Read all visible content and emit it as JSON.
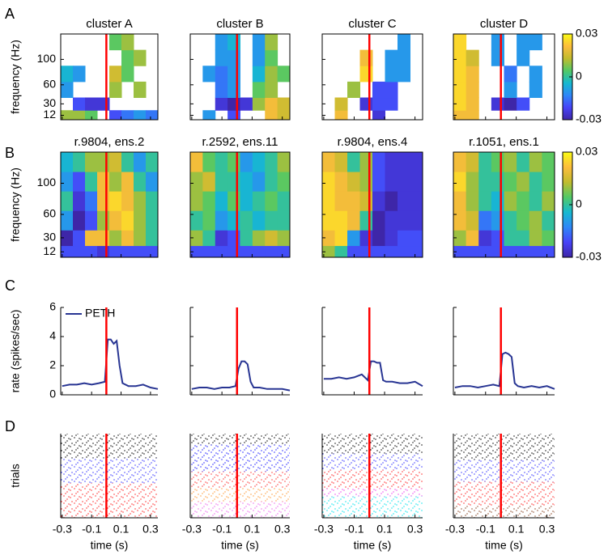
{
  "chart_data": [
    {
      "type": "heatmap",
      "panel_label": "A",
      "ylabel": "frequency (Hz)",
      "xlim": [
        -0.31,
        0.35
      ],
      "xticks": [
        -0.3,
        -0.1,
        0.1,
        0.3
      ],
      "ylim": [
        5,
        140
      ],
      "yticks": [
        12,
        30,
        60,
        100
      ],
      "zlim": [
        -0.03,
        0.03
      ],
      "colorbar_ticks": [
        0.03,
        0,
        -0.03
      ],
      "colormap": [
        "#3e26a8",
        "#4743f8",
        "#2e87f7",
        "#16b9d0",
        "#52c966",
        "#c1bc2e",
        "#fdbd3c",
        "#f9fb15"
      ],
      "marker_x": 0,
      "marker_color": "#ff0000",
      "time_bins": [
        -0.31,
        -0.2275,
        -0.145,
        -0.0625,
        0.02,
        0.1025,
        0.185,
        0.2675,
        0.35
      ],
      "freq_bins": [
        5,
        20,
        40,
        65,
        90,
        115,
        140
      ],
      "panels": [
        {
          "title": "cluster A",
          "z": [
            [
              0.01,
              0.01,
              0.005,
              null,
              -0.02,
              -0.015,
              -0.01,
              -0.015
            ],
            [
              null,
              -0.02,
              -0.025,
              -0.025,
              null,
              null,
              null,
              null
            ],
            [
              -0.01,
              null,
              null,
              null,
              0.01,
              null,
              0.01,
              null
            ],
            [
              -0.005,
              -0.01,
              null,
              null,
              0.015,
              0.005,
              null,
              null
            ],
            [
              null,
              null,
              null,
              null,
              null,
              0.005,
              0.01,
              null
            ],
            [
              null,
              null,
              null,
              null,
              0.005,
              0.01,
              null,
              null
            ]
          ]
        },
        {
          "title": "cluster B",
          "z": [
            [
              null,
              -0.01,
              null,
              -0.02,
              null,
              null,
              0.02,
              0.015
            ],
            [
              null,
              null,
              -0.025,
              -0.03,
              -0.025,
              0.01,
              0.02,
              0.015
            ],
            [
              null,
              null,
              -0.015,
              -0.01,
              null,
              0.005,
              0.01,
              null
            ],
            [
              null,
              -0.01,
              -0.015,
              -0.01,
              null,
              -0.005,
              0.01,
              0.005
            ],
            [
              null,
              null,
              -0.01,
              -0.01,
              null,
              -0.01,
              0.005,
              null
            ],
            [
              null,
              null,
              -0.01,
              -0.005,
              null,
              -0.01,
              0.01,
              null
            ]
          ]
        },
        {
          "title": "cluster C",
          "z": [
            [
              null,
              0.02,
              null,
              null,
              -0.025,
              null,
              null,
              null
            ],
            [
              null,
              0.015,
              null,
              -0.025,
              -0.02,
              -0.02,
              null,
              null
            ],
            [
              null,
              null,
              0.01,
              null,
              -0.02,
              -0.02,
              null,
              null
            ],
            [
              null,
              null,
              null,
              0.025,
              null,
              -0.01,
              -0.01,
              null
            ],
            [
              null,
              null,
              null,
              0.02,
              null,
              -0.01,
              -0.01,
              null
            ],
            [
              null,
              null,
              null,
              null,
              null,
              null,
              -0.01,
              null
            ]
          ]
        },
        {
          "title": "cluster D",
          "z": [
            [
              0.02,
              0.02,
              null,
              null,
              null,
              null,
              null,
              null
            ],
            [
              0.025,
              0.02,
              null,
              -0.025,
              -0.03,
              -0.02,
              null,
              null
            ],
            [
              0.025,
              0.02,
              null,
              null,
              -0.01,
              null,
              -0.01,
              null
            ],
            [
              0.025,
              0.02,
              null,
              null,
              -0.015,
              null,
              -0.01,
              null
            ],
            [
              0.025,
              0.015,
              null,
              -0.01,
              null,
              -0.01,
              null,
              null
            ],
            [
              0.025,
              null,
              null,
              -0.01,
              null,
              -0.01,
              -0.01,
              null
            ]
          ]
        }
      ]
    },
    {
      "type": "heatmap",
      "panel_label": "B",
      "ylabel": "frequency (Hz)",
      "xlim": [
        -0.31,
        0.35
      ],
      "xticks": [
        -0.3,
        -0.1,
        0.1,
        0.3
      ],
      "ylim": [
        5,
        140
      ],
      "yticks": [
        12,
        30,
        60,
        100
      ],
      "zlim": [
        -0.03,
        0.03
      ],
      "colorbar_ticks": [
        0.03,
        0,
        -0.03
      ],
      "colormap": [
        "#3e26a8",
        "#4743f8",
        "#2e87f7",
        "#16b9d0",
        "#52c966",
        "#c1bc2e",
        "#fdbd3c",
        "#f9fb15"
      ],
      "marker_x": 0,
      "marker_color": "#ff0000",
      "time_bins": [
        -0.31,
        -0.2275,
        -0.145,
        -0.0625,
        0.02,
        0.1025,
        0.185,
        0.2675,
        0.35
      ],
      "freq_bins": [
        5,
        20,
        40,
        65,
        90,
        115,
        140
      ],
      "panels": [
        {
          "title": "r.9804, ens.2",
          "z": [
            [
              -0.02,
              -0.02,
              -0.02,
              -0.025,
              -0.02,
              -0.02,
              -0.02,
              -0.02
            ],
            [
              -0.03,
              -0.02,
              0.02,
              0.02,
              0.01,
              0.02,
              0.01,
              0.0
            ],
            [
              -0.01,
              -0.03,
              -0.02,
              0.01,
              0.02,
              0.025,
              0.01,
              0.0
            ],
            [
              0.0,
              -0.025,
              -0.015,
              0.02,
              0.025,
              0.02,
              0.01,
              0.0
            ],
            [
              -0.01,
              -0.02,
              0.0,
              0.02,
              0.01,
              0.02,
              0.0,
              -0.01
            ],
            [
              -0.005,
              0.0,
              0.01,
              0.01,
              0.015,
              0.0,
              -0.01,
              0.0
            ]
          ]
        },
        {
          "title": "r.2592, ens.11",
          "z": [
            [
              -0.02,
              -0.02,
              -0.02,
              -0.02,
              -0.02,
              -0.02,
              -0.02,
              -0.02
            ],
            [
              0.01,
              0.0,
              -0.025,
              -0.02,
              0.0,
              0.01,
              0.015,
              0.01
            ],
            [
              0.0,
              0.005,
              -0.01,
              -0.005,
              0.0,
              -0.005,
              0.0,
              0.0
            ],
            [
              0.01,
              0.005,
              -0.005,
              0.005,
              -0.005,
              0.0,
              0.005,
              0.0
            ],
            [
              0.01,
              0.015,
              0.0,
              0.0,
              -0.005,
              -0.01,
              0.0,
              0.005
            ],
            [
              0.02,
              0.005,
              0.0,
              0.005,
              -0.01,
              -0.005,
              0.0,
              0.01
            ]
          ]
        },
        {
          "title": "r.9804, ens.4",
          "z": [
            [
              0.01,
              0.0,
              -0.02,
              -0.02,
              -0.02,
              -0.02,
              -0.02,
              -0.02
            ],
            [
              0.02,
              0.025,
              -0.01,
              -0.025,
              -0.03,
              -0.025,
              -0.02,
              -0.02
            ],
            [
              0.025,
              0.025,
              0.02,
              0.0,
              -0.03,
              -0.025,
              -0.025,
              -0.025
            ],
            [
              0.025,
              0.02,
              0.02,
              0.015,
              -0.025,
              -0.03,
              -0.025,
              -0.025
            ],
            [
              0.025,
              0.02,
              0.015,
              0.01,
              -0.02,
              -0.025,
              -0.025,
              -0.025
            ],
            [
              0.02,
              0.015,
              0.0,
              0.01,
              -0.02,
              -0.025,
              -0.025,
              -0.025
            ]
          ]
        },
        {
          "title": "r.1051, ens.1",
          "z": [
            [
              -0.02,
              -0.02,
              -0.02,
              -0.02,
              -0.02,
              -0.02,
              -0.02,
              -0.02
            ],
            [
              0.01,
              0.02,
              -0.025,
              -0.02,
              0.0,
              0.0,
              0.01,
              0.005
            ],
            [
              0.02,
              0.015,
              -0.015,
              -0.01,
              0.0,
              0.005,
              0.01,
              0.0
            ],
            [
              0.02,
              0.01,
              0.0,
              -0.005,
              0.01,
              0.005,
              0.0,
              0.01
            ],
            [
              0.025,
              0.01,
              0.0,
              0.0,
              0.005,
              0.01,
              0.0,
              0.005
            ],
            [
              0.02,
              0.015,
              0.0,
              0.005,
              0.01,
              0.0,
              0.01,
              0.005
            ]
          ]
        }
      ]
    },
    {
      "type": "line",
      "panel_label": "C",
      "ylabel": "rate (spikes/sec)",
      "legend": "PETH",
      "color": "#283593",
      "xlim": [
        -0.31,
        0.35
      ],
      "xticks": [
        -0.3,
        -0.1,
        0.1,
        0.3
      ],
      "ylim": [
        0,
        6
      ],
      "yticks": [
        0,
        2,
        4,
        6
      ],
      "marker_x": 0,
      "marker_color": "#ff0000",
      "x": [
        -0.3,
        -0.25,
        -0.2,
        -0.15,
        -0.1,
        -0.05,
        -0.01,
        0.01,
        0.03,
        0.05,
        0.07,
        0.09,
        0.11,
        0.15,
        0.2,
        0.25,
        0.3,
        0.35
      ],
      "panels": [
        {
          "values": [
            0.6,
            0.7,
            0.7,
            0.8,
            0.7,
            0.8,
            0.9,
            3.8,
            3.8,
            3.5,
            3.7,
            2.0,
            0.8,
            0.6,
            0.6,
            0.7,
            0.5,
            0.4
          ]
        },
        {
          "values": [
            0.4,
            0.5,
            0.5,
            0.4,
            0.5,
            0.5,
            0.6,
            1.8,
            2.3,
            2.3,
            2.1,
            0.9,
            0.5,
            0.5,
            0.4,
            0.4,
            0.4,
            0.3
          ]
        },
        {
          "values": [
            1.1,
            1.1,
            1.2,
            1.1,
            1.2,
            1.4,
            1.0,
            2.3,
            2.3,
            2.2,
            2.2,
            1.0,
            0.9,
            0.9,
            0.8,
            0.8,
            0.9,
            0.6
          ]
        },
        {
          "values": [
            0.5,
            0.6,
            0.6,
            0.5,
            0.6,
            0.7,
            0.6,
            2.8,
            2.9,
            2.8,
            2.6,
            0.8,
            0.6,
            0.5,
            0.6,
            0.5,
            0.6,
            0.4
          ]
        }
      ]
    },
    {
      "type": "raster",
      "panel_label": "D",
      "ylabel": "trials",
      "xlabel": "time (s)",
      "xlim": [
        -0.31,
        0.35
      ],
      "xticks": [
        -0.3,
        -0.1,
        0.1,
        0.3
      ],
      "marker_x": 0,
      "marker_color": "#ff0000",
      "panels": [
        {
          "groups": [
            {
              "color": "#000000",
              "trials": 20
            },
            {
              "color": "#3333ff",
              "trials": 20
            },
            {
              "color": "#ff2222",
              "trials": 28
            }
          ]
        },
        {
          "groups": [
            {
              "color": "#000000",
              "trials": 8
            },
            {
              "color": "#1a1aff",
              "trials": 20
            },
            {
              "color": "#ff3333",
              "trials": 12
            },
            {
              "color": "#ff9933",
              "trials": 10
            },
            {
              "color": "#ee66ee",
              "trials": 12
            }
          ]
        },
        {
          "groups": [
            {
              "color": "#000000",
              "trials": 15
            },
            {
              "color": "#3333ff",
              "trials": 12
            },
            {
              "color": "#ff2222",
              "trials": 14
            },
            {
              "color": "#ee44ee",
              "trials": 6
            },
            {
              "color": "#00e5ee",
              "trials": 16
            }
          ]
        },
        {
          "groups": [
            {
              "color": "#000000",
              "trials": 22
            },
            {
              "color": "#3333ff",
              "trials": 18
            },
            {
              "color": "#ff2222",
              "trials": 20
            },
            {
              "color": "#884422",
              "trials": 10
            }
          ]
        }
      ]
    }
  ]
}
